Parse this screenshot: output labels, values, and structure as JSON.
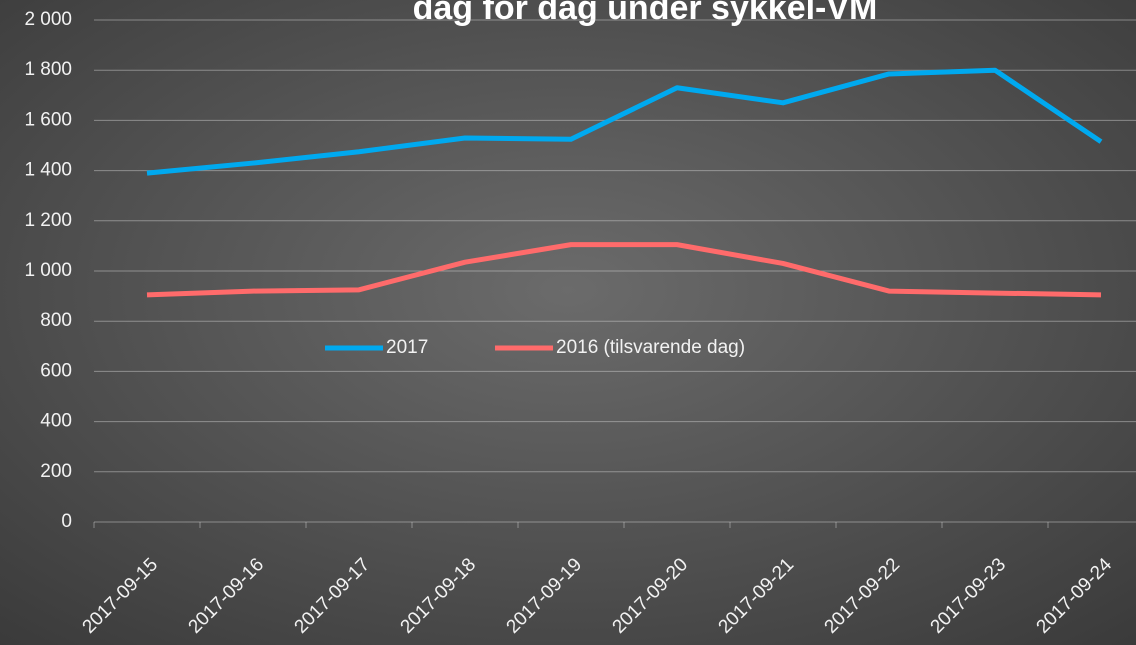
{
  "chart_data": {
    "type": "line",
    "title": "dag for dag under sykkel-VM",
    "categories": [
      "2017-09-15",
      "2017-09-16",
      "2017-09-17",
      "2017-09-18",
      "2017-09-19",
      "2017-09-20",
      "2017-09-21",
      "2017-09-22",
      "2017-09-23",
      "2017-09-24"
    ],
    "series": [
      {
        "name": "2017",
        "color": "#00a9ef",
        "values": [
          1390,
          1430,
          1475,
          1530,
          1525,
          1730,
          1670,
          1785,
          1800,
          1515
        ]
      },
      {
        "name": "2016 (tilsvarende dag)",
        "color": "#ff6b6b",
        "values": [
          905,
          920,
          925,
          1035,
          1105,
          1105,
          1030,
          920,
          912,
          905
        ]
      }
    ],
    "ylim": [
      0,
      2000
    ],
    "yticks": [
      0,
      200,
      400,
      600,
      800,
      {
        "value": 1000,
        "label": "1 000"
      },
      {
        "value": 1200,
        "label": "1 200"
      },
      {
        "value": 1400,
        "label": "1 400"
      },
      {
        "value": 1600,
        "label": "1 600"
      },
      {
        "value": 1800,
        "label": "1 800"
      },
      {
        "value": 2000,
        "label": "2 000"
      }
    ],
    "grid": true,
    "legend": "center"
  }
}
